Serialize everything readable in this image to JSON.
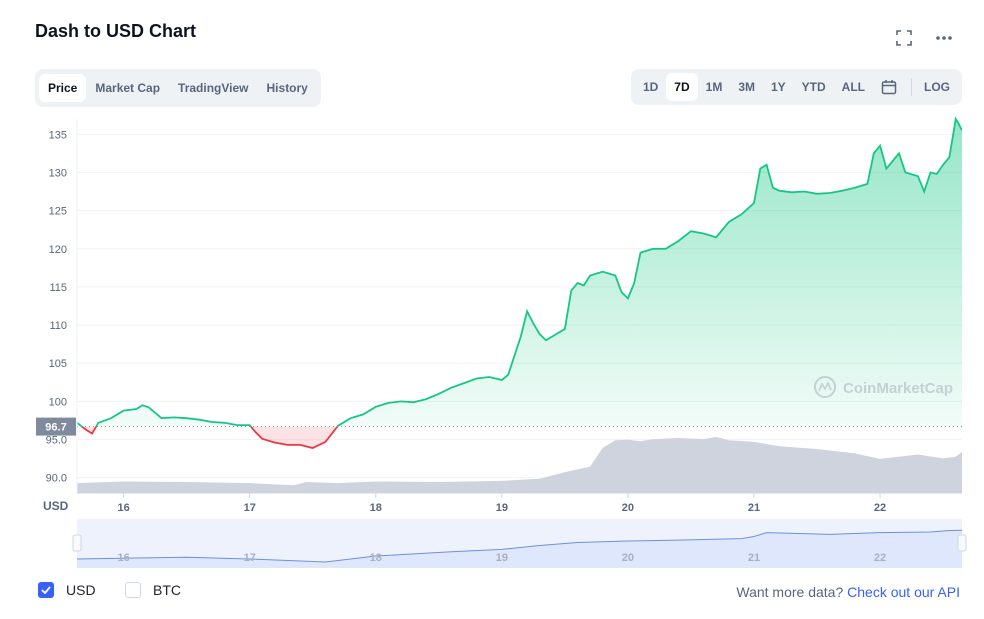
{
  "title": "Dash to USD Chart",
  "icons": {
    "expand": "fullscreen-icon",
    "more": "more-dots-icon",
    "calendar": "calendar-icon",
    "check": "check-icon",
    "watermark_logo": "coinmarketcap-logo"
  },
  "tabs": [
    {
      "label": "Price",
      "active": true
    },
    {
      "label": "Market Cap",
      "active": false
    },
    {
      "label": "TradingView",
      "active": false
    },
    {
      "label": "History",
      "active": false
    }
  ],
  "ranges": [
    {
      "label": "1D",
      "active": false
    },
    {
      "label": "7D",
      "active": true
    },
    {
      "label": "1M",
      "active": false
    },
    {
      "label": "3M",
      "active": false
    },
    {
      "label": "1Y",
      "active": false
    },
    {
      "label": "YTD",
      "active": false
    },
    {
      "label": "ALL",
      "active": false
    }
  ],
  "log_label": "LOG",
  "watermark": "CoinMarketCap",
  "colors": {
    "up": "#16c784",
    "down": "#ea3943",
    "volume": "#cfd3de",
    "navigator": "#dfe7fd",
    "navigator_line": "#6f8fdc",
    "current_price_tag": "#808a9d"
  },
  "chart_data": {
    "type": "line",
    "ylabel": "USD",
    "y_ticks": [
      "90.0",
      "95.0",
      "100",
      "105",
      "110",
      "115",
      "120",
      "125",
      "130",
      "135"
    ],
    "ylim": [
      88,
      137
    ],
    "x_ticks": [
      "16",
      "17",
      "18",
      "19",
      "20",
      "21",
      "22"
    ],
    "xlim": [
      15.63,
      22.65
    ],
    "current_price": 96.7,
    "current_price_label": "96.7",
    "baseline": 96.7,
    "series": [
      {
        "x": [
          15.63,
          15.7,
          15.75,
          15.8,
          15.9,
          16.0,
          16.1,
          16.15,
          16.2,
          16.3,
          16.4,
          16.5,
          16.6,
          16.7,
          16.8,
          16.9,
          17.0,
          17.05,
          17.1,
          17.2,
          17.3,
          17.4,
          17.5,
          17.6,
          17.7,
          17.8,
          17.9,
          18.0,
          18.1,
          18.2,
          18.3,
          18.4,
          18.5,
          18.6,
          18.7,
          18.8,
          18.9,
          19.0,
          19.05,
          19.1,
          19.15,
          19.2,
          19.25,
          19.3,
          19.35,
          19.4,
          19.5,
          19.55,
          19.6,
          19.65,
          19.7,
          19.8,
          19.9,
          19.95,
          20.0,
          20.05,
          20.1,
          20.2,
          20.3,
          20.4,
          20.5,
          20.6,
          20.7,
          20.8,
          20.9,
          21.0,
          21.05,
          21.1,
          21.15,
          21.2,
          21.3,
          21.4,
          21.5,
          21.6,
          21.7,
          21.8,
          21.9,
          21.95,
          22.0,
          22.05,
          22.1,
          22.15,
          22.2,
          22.3,
          22.35,
          22.4,
          22.45,
          22.5,
          22.55,
          22.58,
          22.6,
          22.62,
          22.65
        ],
        "y": [
          97.2,
          96.3,
          95.8,
          97.2,
          97.8,
          98.8,
          99.0,
          99.5,
          99.2,
          97.8,
          97.9,
          97.8,
          97.6,
          97.3,
          97.2,
          96.9,
          96.9,
          95.9,
          95.1,
          94.6,
          94.3,
          94.3,
          93.9,
          94.7,
          96.8,
          97.8,
          98.3,
          99.3,
          99.8,
          100.0,
          99.9,
          100.3,
          101.0,
          101.8,
          102.4,
          103.0,
          103.2,
          102.8,
          103.5,
          106.0,
          108.5,
          111.8,
          110.2,
          108.8,
          108.0,
          108.5,
          109.5,
          114.5,
          115.5,
          115.2,
          116.5,
          117.0,
          116.5,
          114.3,
          113.5,
          115.5,
          119.5,
          120.0,
          120.0,
          121.0,
          122.3,
          122.0,
          121.5,
          123.5,
          124.5,
          126.0,
          130.5,
          131.0,
          128.0,
          127.6,
          127.4,
          127.5,
          127.2,
          127.3,
          127.6,
          128.0,
          128.5,
          132.5,
          133.5,
          130.5,
          131.5,
          132.5,
          130.0,
          129.5,
          127.5,
          130.0,
          129.8,
          131.0,
          132.0,
          135.0,
          137.0,
          136.5,
          135.5
        ]
      }
    ],
    "volume": {
      "x": [
        15.63,
        16.0,
        16.5,
        17.0,
        17.35,
        17.45,
        17.7,
        18.0,
        18.5,
        19.0,
        19.3,
        19.5,
        19.7,
        19.8,
        19.9,
        20.0,
        20.1,
        20.2,
        20.4,
        20.6,
        20.7,
        20.8,
        21.0,
        21.2,
        21.5,
        21.8,
        22.0,
        22.3,
        22.5,
        22.6,
        22.65
      ],
      "y": [
        0.18,
        0.21,
        0.2,
        0.18,
        0.14,
        0.2,
        0.18,
        0.21,
        0.2,
        0.22,
        0.26,
        0.38,
        0.48,
        0.82,
        0.96,
        0.97,
        0.94,
        0.98,
        1.0,
        0.98,
        1.02,
        0.96,
        0.93,
        0.85,
        0.8,
        0.72,
        0.62,
        0.7,
        0.63,
        0.66,
        0.75
      ]
    },
    "navigator": {
      "x": [
        15.63,
        16.5,
        17.0,
        17.6,
        18.0,
        18.6,
        19.0,
        19.3,
        19.6,
        20.0,
        20.4,
        20.9,
        21.0,
        21.1,
        21.6,
        22.0,
        22.4,
        22.55,
        22.65
      ],
      "y": [
        0.3,
        0.36,
        0.3,
        0.2,
        0.4,
        0.54,
        0.62,
        0.75,
        0.85,
        0.9,
        0.93,
        0.98,
        1.05,
        1.18,
        1.12,
        1.18,
        1.2,
        1.25,
        1.26
      ]
    }
  },
  "footer": {
    "usd_label": "USD",
    "btc_label": "BTC",
    "more_text": "Want more data? ",
    "more_link": "Check out our API"
  }
}
